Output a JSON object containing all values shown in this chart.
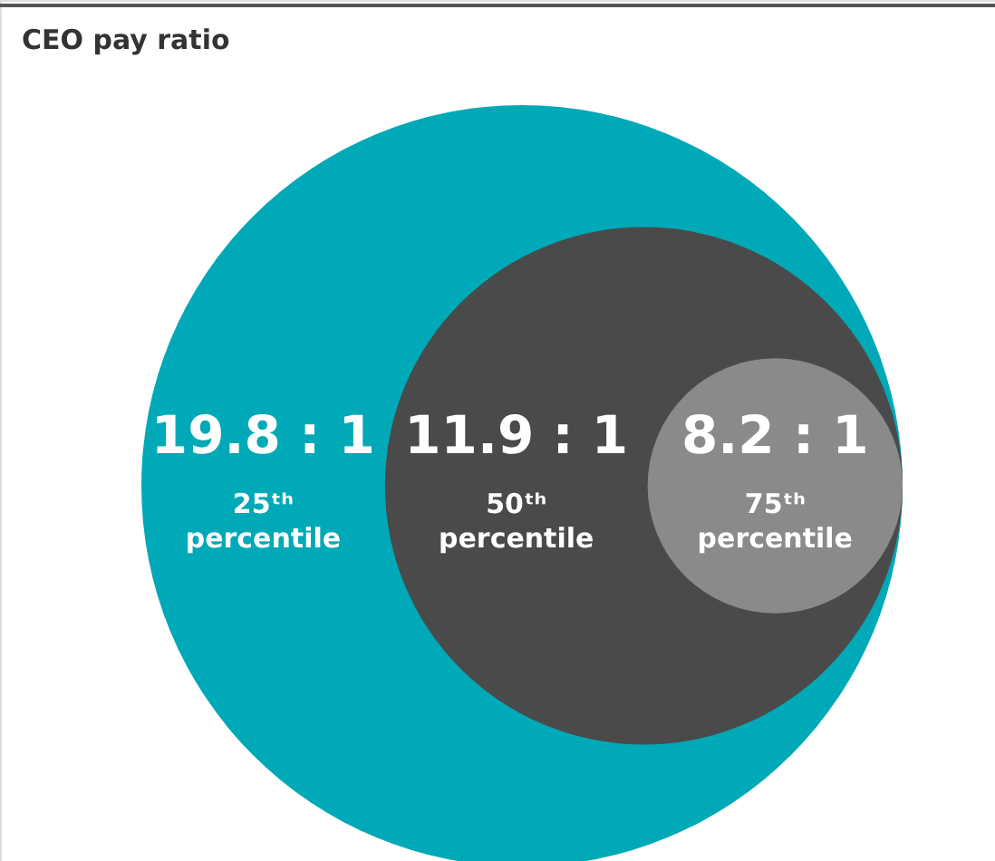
{
  "chart_data": {
    "type": "other",
    "title": "CEO pay ratio",
    "categories": [
      "25ᵗʰ percentile",
      "50ᵗʰ percentile",
      "75ᵗʰ percentile"
    ],
    "values": [
      19.8,
      11.9,
      8.2
    ],
    "value_labels": [
      "19.8 : 1",
      "11.9 : 1",
      "8.2 : 1"
    ],
    "colors": [
      "#00a9b7",
      "#4a4a4a",
      "#8a8a8a"
    ]
  }
}
